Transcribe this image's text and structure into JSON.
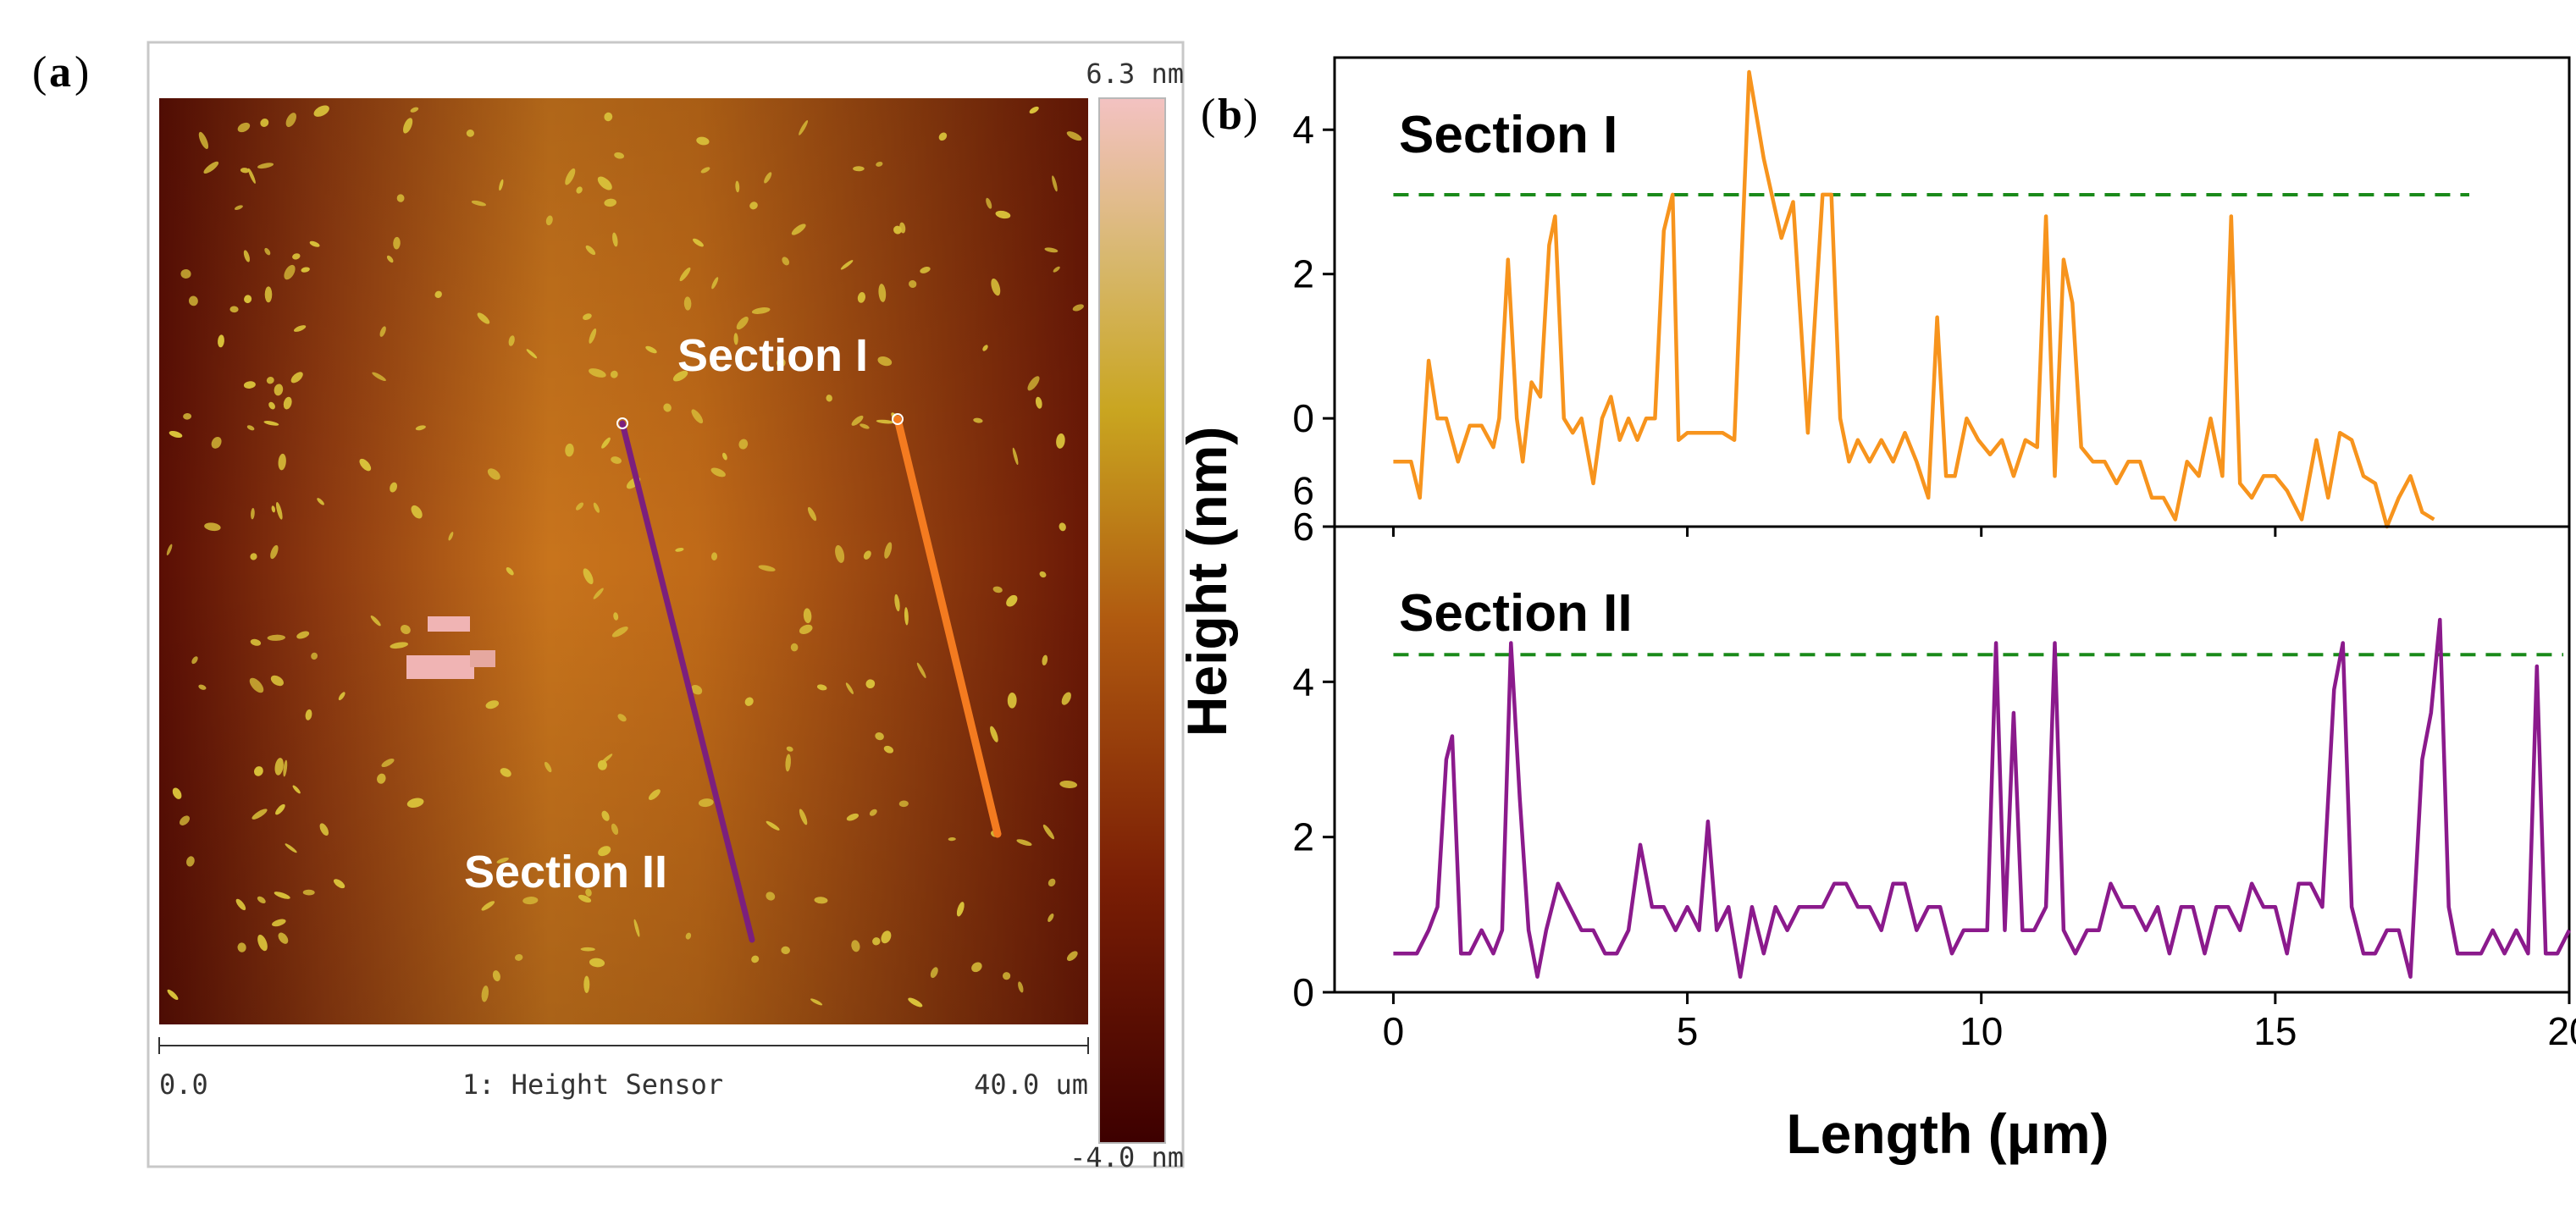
{
  "panel_a": {
    "label_open": "(",
    "label_letter": "a",
    "label_close": ")",
    "colorbar_max": "6.3 nm",
    "colorbar_min": "-4.0 nm",
    "axis_left": "0.0",
    "axis_caption": "1: Height Sensor",
    "axis_right": "40.0 um",
    "section_1_label": "Section I",
    "section_2_label": "Section II",
    "colors": {
      "line_section_1": "#f47b20",
      "line_section_2": "#7b1f7d",
      "background_dark": "#5a0e04",
      "background_light": "#c8741c",
      "particle": "#d9c13a"
    }
  },
  "panel_b": {
    "label_open": "(",
    "label_letter": "b",
    "label_close": ")",
    "section_1_title": "Section I",
    "section_2_title": "Section II",
    "colors": {
      "series_section_1": "#f7941d",
      "series_section_2": "#8b1a8c",
      "threshold": "#1a8a1a"
    }
  },
  "chart_data": {
    "type": "line",
    "title": "",
    "xlabel": "Length (μm)",
    "ylabel": "Height (nm)",
    "xlim": [
      -1,
      20
    ],
    "xticks": [
      0,
      5,
      10,
      15,
      20
    ],
    "grid": false,
    "subplots": [
      {
        "name": "Section I",
        "ylim": [
          -1.5,
          5
        ],
        "yticks": [
          0,
          2,
          4
        ],
        "extra_tick_labels": [
          {
            "y": -1.0,
            "label": "6"
          }
        ],
        "threshold": 3.1,
        "threshold_x": [
          0,
          18.3
        ],
        "series": {
          "name": "Section I",
          "x": [
            0.0,
            0.3,
            0.45,
            0.6,
            0.75,
            0.9,
            1.1,
            1.3,
            1.5,
            1.7,
            1.8,
            1.95,
            2.1,
            2.2,
            2.35,
            2.5,
            2.65,
            2.75,
            2.9,
            3.05,
            3.2,
            3.4,
            3.55,
            3.7,
            3.85,
            4.0,
            4.15,
            4.3,
            4.45,
            4.6,
            4.75,
            4.85,
            5.0,
            5.2,
            5.4,
            5.6,
            5.8,
            6.05,
            6.3,
            6.6,
            6.8,
            7.05,
            7.3,
            7.45,
            7.6,
            7.75,
            7.9,
            8.1,
            8.3,
            8.5,
            8.7,
            8.9,
            9.1,
            9.25,
            9.4,
            9.55,
            9.75,
            9.95,
            10.15,
            10.35,
            10.55,
            10.75,
            10.95,
            11.1,
            11.25,
            11.4,
            11.55,
            11.7,
            11.9,
            12.1,
            12.3,
            12.5,
            12.7,
            12.9,
            13.1,
            13.3,
            13.5,
            13.7,
            13.9,
            14.1,
            14.25,
            14.4,
            14.6,
            14.8,
            15.0,
            15.2,
            15.45,
            15.7,
            15.9,
            16.1,
            16.3,
            16.5,
            16.7,
            16.9,
            17.1,
            17.3,
            17.5,
            17.7
          ],
          "values": [
            -0.6,
            -0.6,
            -1.1,
            0.8,
            0.0,
            0.0,
            -0.6,
            -0.1,
            -0.1,
            -0.4,
            0.0,
            2.2,
            0.0,
            -0.6,
            0.5,
            0.3,
            2.4,
            2.8,
            0.0,
            -0.2,
            0.0,
            -0.9,
            0.0,
            0.3,
            -0.3,
            0.0,
            -0.3,
            0.0,
            0.0,
            2.6,
            3.1,
            -0.3,
            -0.2,
            -0.2,
            -0.2,
            -0.2,
            -0.3,
            4.8,
            3.6,
            2.5,
            3.0,
            -0.2,
            3.1,
            3.1,
            0.0,
            -0.6,
            -0.3,
            -0.6,
            -0.3,
            -0.6,
            -0.2,
            -0.6,
            -1.1,
            1.4,
            -0.8,
            -0.8,
            0.0,
            -0.3,
            -0.5,
            -0.3,
            -0.8,
            -0.3,
            -0.4,
            2.8,
            -0.8,
            2.2,
            1.6,
            -0.4,
            -0.6,
            -0.6,
            -0.9,
            -0.6,
            -0.6,
            -1.1,
            -1.1,
            -1.4,
            -0.6,
            -0.8,
            0.0,
            -0.8,
            2.8,
            -0.9,
            -1.1,
            -0.8,
            -0.8,
            -1.0,
            -1.4,
            -0.3,
            -1.1,
            -0.2,
            -0.3,
            -0.8,
            -0.9,
            -1.5,
            -1.1,
            -0.8,
            -1.3,
            -1.4
          ]
        }
      },
      {
        "name": "Section II",
        "ylim": [
          0,
          6
        ],
        "yticks": [
          0,
          2,
          4,
          6
        ],
        "threshold": 4.35,
        "threshold_x": [
          0,
          19.9
        ],
        "series": {
          "name": "Section II",
          "x": [
            0.0,
            0.2,
            0.4,
            0.6,
            0.75,
            0.9,
            1.0,
            1.15,
            1.3,
            1.5,
            1.7,
            1.85,
            2.0,
            2.15,
            2.3,
            2.45,
            2.6,
            2.8,
            3.0,
            3.2,
            3.4,
            3.6,
            3.8,
            4.0,
            4.2,
            4.4,
            4.6,
            4.8,
            5.0,
            5.2,
            5.35,
            5.5,
            5.7,
            5.9,
            6.1,
            6.3,
            6.5,
            6.7,
            6.9,
            7.1,
            7.3,
            7.5,
            7.7,
            7.9,
            8.1,
            8.3,
            8.5,
            8.7,
            8.9,
            9.1,
            9.3,
            9.5,
            9.7,
            9.9,
            10.1,
            10.25,
            10.4,
            10.55,
            10.7,
            10.9,
            11.1,
            11.25,
            11.4,
            11.6,
            11.8,
            12.0,
            12.2,
            12.4,
            12.6,
            12.8,
            13.0,
            13.2,
            13.4,
            13.6,
            13.8,
            14.0,
            14.2,
            14.4,
            14.6,
            14.8,
            15.0,
            15.2,
            15.4,
            15.6,
            15.8,
            16.0,
            16.15,
            16.3,
            16.5,
            16.7,
            16.9,
            17.1,
            17.3,
            17.5,
            17.65,
            17.8,
            17.95,
            18.1,
            18.3,
            18.5,
            18.7,
            18.9,
            19.1,
            19.3,
            19.45,
            19.6,
            19.8,
            20.0
          ],
          "values": [
            0.5,
            0.5,
            0.5,
            0.8,
            1.1,
            3.0,
            3.3,
            0.5,
            0.5,
            0.8,
            0.5,
            0.8,
            4.5,
            2.5,
            0.8,
            0.2,
            0.8,
            1.4,
            1.1,
            0.8,
            0.8,
            0.5,
            0.5,
            0.8,
            1.9,
            1.1,
            1.1,
            0.8,
            1.1,
            0.8,
            2.2,
            0.8,
            1.1,
            0.2,
            1.1,
            0.5,
            1.1,
            0.8,
            1.1,
            1.1,
            1.1,
            1.4,
            1.4,
            1.1,
            1.1,
            0.8,
            1.4,
            1.4,
            0.8,
            1.1,
            1.1,
            0.5,
            0.8,
            0.8,
            0.8,
            4.5,
            0.8,
            3.6,
            0.8,
            0.8,
            1.1,
            4.5,
            0.8,
            0.5,
            0.8,
            0.8,
            1.4,
            1.1,
            1.1,
            0.8,
            1.1,
            0.5,
            1.1,
            1.1,
            0.5,
            1.1,
            1.1,
            0.8,
            1.4,
            1.1,
            1.1,
            0.5,
            1.4,
            1.4,
            1.1,
            3.9,
            4.5,
            1.1,
            0.5,
            0.5,
            0.8,
            0.8,
            0.2,
            3.0,
            3.6,
            4.8,
            1.1,
            0.5,
            0.5,
            0.5,
            0.8,
            0.5,
            0.8,
            0.5,
            4.2,
            0.5,
            0.5,
            0.8
          ]
        }
      }
    ]
  }
}
